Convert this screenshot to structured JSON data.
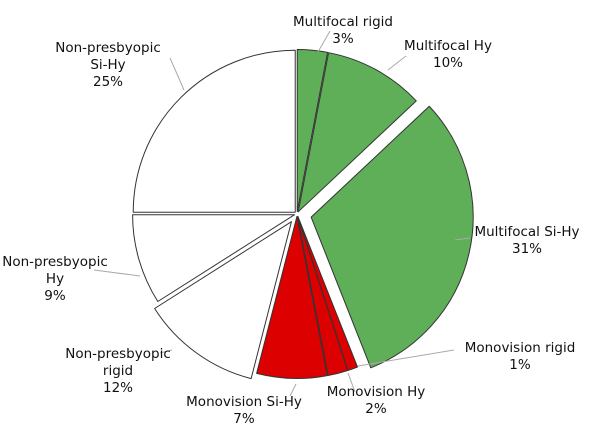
{
  "chart_data": {
    "type": "pie",
    "title": "",
    "slices": [
      {
        "name": "Multifocal rigid",
        "value": 3,
        "pct": "3%",
        "color": "#5fae58",
        "label_lines": [
          "Multifocal rigid"
        ]
      },
      {
        "name": "Multifocal Hy",
        "value": 10,
        "pct": "10%",
        "color": "#5fae58",
        "label_lines": [
          "Multifocal Hy"
        ]
      },
      {
        "name": "Multifocal Si-Hy",
        "value": 31,
        "pct": "31%",
        "color": "#5fae58",
        "label_lines": [
          "Multifocal Si-Hy"
        ]
      },
      {
        "name": "Monovision rigid",
        "value": 1,
        "pct": "1%",
        "color": "#dc0000",
        "label_lines": [
          "Monovision rigid"
        ]
      },
      {
        "name": "Monovision Hy",
        "value": 2,
        "pct": "2%",
        "color": "#dc0000",
        "label_lines": [
          "Monovision Hy"
        ]
      },
      {
        "name": "Monovision Si-Hy",
        "value": 7,
        "pct": "7%",
        "color": "#dc0000",
        "label_lines": [
          "Monovision Si-Hy"
        ]
      },
      {
        "name": "Non-presbyopic rigid",
        "value": 12,
        "pct": "12%",
        "color": "#ffffff",
        "label_lines": [
          "Non-presbyopic",
          "rigid"
        ]
      },
      {
        "name": "Non-presbyopic Hy",
        "value": 9,
        "pct": "9%",
        "color": "#ffffff",
        "label_lines": [
          "Non-presbyopic",
          "Hy"
        ]
      },
      {
        "name": "Non-presbyopic Si-Hy",
        "value": 25,
        "pct": "25%",
        "color": "#ffffff",
        "label_lines": [
          "Non-presbyopic",
          "Si-Hy"
        ]
      }
    ],
    "legend": "none",
    "slice_border_color": "#333333",
    "leader_line_color": "#aaaaaa"
  }
}
